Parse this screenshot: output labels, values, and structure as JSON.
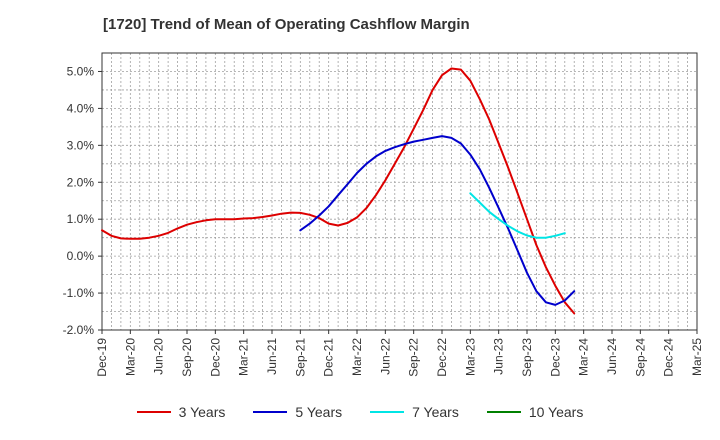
{
  "chart_data": {
    "type": "line",
    "title": "[1720]  Trend of Mean of Operating Cashflow Margin",
    "xlabel": "",
    "ylabel": "",
    "ylim": [
      -2.0,
      5.5
    ],
    "y_ticks": [
      -2.0,
      -1.0,
      0.0,
      1.0,
      2.0,
      3.0,
      4.0,
      5.0
    ],
    "y_tick_labels": [
      "-2.0%",
      "-1.0%",
      "0.0%",
      "1.0%",
      "2.0%",
      "3.0%",
      "4.0%",
      "5.0%"
    ],
    "x_tick_labels": [
      "Dec-19",
      "Mar-20",
      "Jun-20",
      "Sep-20",
      "Dec-20",
      "Mar-21",
      "Jun-21",
      "Sep-21",
      "Dec-21",
      "Mar-22",
      "Jun-22",
      "Sep-22",
      "Dec-22",
      "Mar-23",
      "Jun-23",
      "Sep-23",
      "Dec-23",
      "Mar-24",
      "Jun-24",
      "Sep-24",
      "Dec-24",
      "Mar-25"
    ],
    "grid": true,
    "series": [
      {
        "name": "3 Years",
        "color": "#dd0000",
        "start_index": 0,
        "values": [
          0.7,
          0.55,
          0.48,
          0.47,
          0.47,
          0.5,
          0.55,
          0.63,
          0.75,
          0.85,
          0.92,
          0.97,
          1.0,
          1.0,
          1.0,
          1.02,
          1.03,
          1.06,
          1.1,
          1.15,
          1.18,
          1.17,
          1.12,
          1.03,
          0.88,
          0.83,
          0.9,
          1.05,
          1.3,
          1.65,
          2.05,
          2.5,
          2.95,
          3.45,
          3.95,
          4.5,
          4.9,
          5.08,
          5.05,
          4.75,
          4.25,
          3.7,
          3.05,
          2.4,
          1.7,
          1.0,
          0.3,
          -0.3,
          -0.8,
          -1.25,
          -1.55
        ]
      },
      {
        "name": "5 Years",
        "color": "#0000cc",
        "start_index": 21,
        "values": [
          0.7,
          0.88,
          1.1,
          1.35,
          1.65,
          1.95,
          2.25,
          2.5,
          2.7,
          2.85,
          2.95,
          3.03,
          3.1,
          3.15,
          3.2,
          3.25,
          3.2,
          3.05,
          2.75,
          2.35,
          1.85,
          1.3,
          0.75,
          0.15,
          -0.45,
          -0.95,
          -1.25,
          -1.32,
          -1.2,
          -0.95
        ]
      },
      {
        "name": "7 Years",
        "color": "#00e5e5",
        "start_index": 39,
        "values": [
          1.7,
          1.45,
          1.2,
          1.0,
          0.82,
          0.67,
          0.56,
          0.5,
          0.5,
          0.55,
          0.62
        ]
      },
      {
        "name": "10 Years",
        "color": "#008000",
        "start_index": 0,
        "values": []
      }
    ]
  }
}
